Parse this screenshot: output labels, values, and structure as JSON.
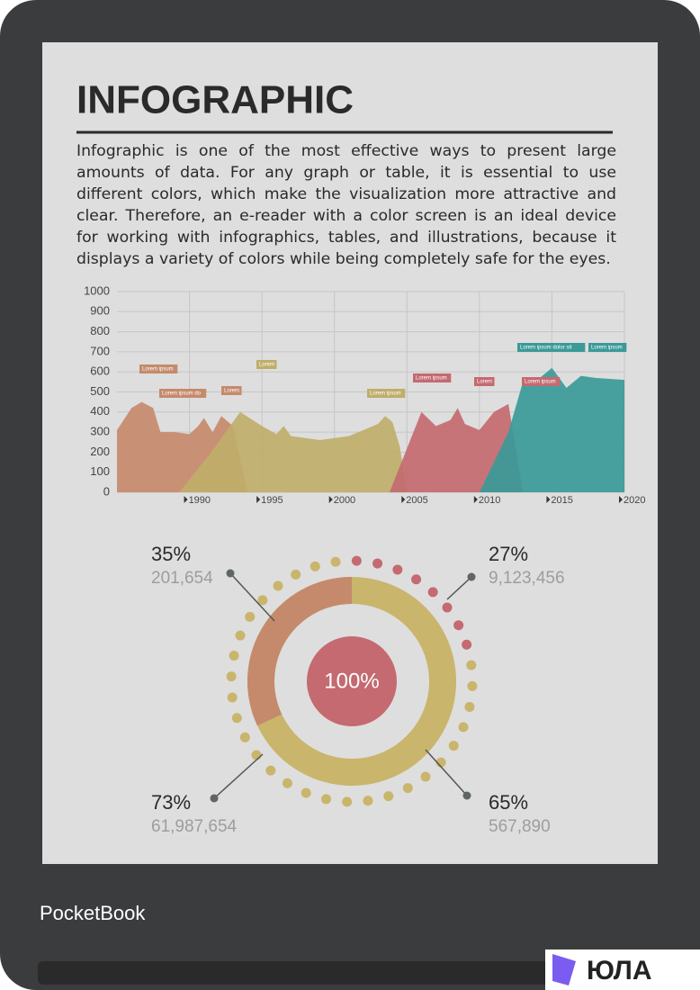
{
  "header": {
    "title": "INFOGRAPHIC"
  },
  "body": {
    "paragraph": "Infographic is one of the most effective ways to present large amounts of data. For any graph or table, it is essential to use different colors, which make the visualization more attractive and clear. Therefore, an e-reader with a color screen is an ideal device for working with infographics, tables, and illustrations, because it displays a variety of colors while being completely safe for the eyes."
  },
  "chart_data": {
    "type": "area",
    "xlim": [
      1985,
      2020
    ],
    "ylim": [
      0,
      1000
    ],
    "xticks": [
      1990,
      1995,
      2000,
      2005,
      2010,
      2015,
      2020
    ],
    "yticks": [
      0,
      100,
      200,
      300,
      400,
      500,
      600,
      700,
      800,
      900,
      1000
    ],
    "grid": true,
    "series": [
      {
        "color": "#c58a6c",
        "x": [
          1985,
          1986,
          1986.7,
          1987.5,
          1988,
          1989,
          1990,
          1990.6,
          1991,
          1991.6,
          1992.2,
          1993,
          1994
        ],
        "values": [
          310,
          420,
          450,
          420,
          300,
          300,
          290,
          330,
          370,
          300,
          380,
          330,
          0
        ]
      },
      {
        "color": "#bfae6a",
        "x": [
          1989.3,
          1991.5,
          1993.5,
          1995,
          1996,
          1996.5,
          1997,
          1998,
          1999,
          2000,
          2001,
          2002,
          2003,
          2003.5,
          2004,
          2004.5,
          2005
        ],
        "values": [
          0,
          200,
          400,
          330,
          290,
          330,
          280,
          270,
          260,
          270,
          280,
          310,
          340,
          380,
          350,
          230,
          0
        ]
      },
      {
        "color": "#c46a70",
        "x": [
          2003.8,
          2006,
          2007,
          2008,
          2008.5,
          2009,
          2010,
          2011,
          2012,
          2013
        ],
        "values": [
          0,
          400,
          330,
          360,
          420,
          340,
          310,
          400,
          440,
          0
        ]
      },
      {
        "color": "#3a9a98",
        "x": [
          2010,
          2012,
          2013,
          2014,
          2015,
          2016,
          2017,
          2018,
          2020,
          2020
        ],
        "values": [
          0,
          300,
          550,
          560,
          620,
          520,
          580,
          570,
          560,
          0
        ]
      }
    ],
    "annotations": [
      "Lorem ipsum",
      "Lorem ipsum do",
      "Lorem",
      "Lorem",
      "Lorem ipsum",
      "Lorem ipsum",
      "Lorem",
      "Lorem ipsum",
      "Lorem ipsum dolor sit",
      "Lorem ipsum"
    ]
  },
  "donut": {
    "center_label": "100%",
    "callouts": [
      {
        "percent": "35%",
        "count": "201,654"
      },
      {
        "percent": "27%",
        "count": "9,123,456"
      },
      {
        "percent": "73%",
        "count": "61,987,654"
      },
      {
        "percent": "65%",
        "count": "567,890"
      }
    ]
  },
  "brand": "PocketBook",
  "watermark": "ЮЛА"
}
